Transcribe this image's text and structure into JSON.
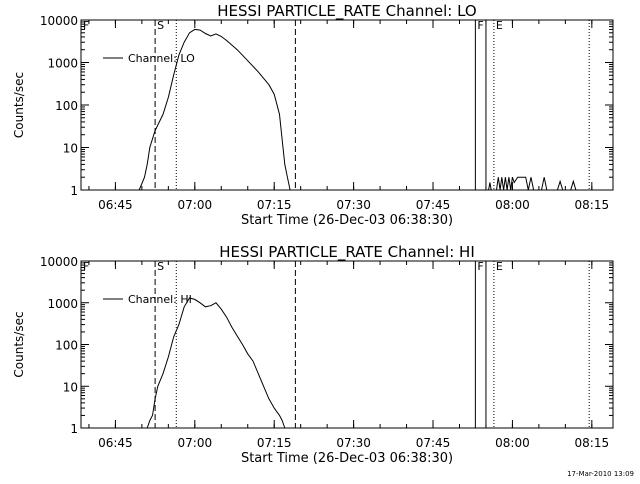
{
  "footer_stamp": "17-Mar-2010 13:09",
  "chart_data": [
    {
      "type": "line",
      "title": "HESSI PARTICLE_RATE Channel: LO",
      "xlabel": "Start Time (26-Dec-03 06:38:30)",
      "ylabel": "Counts/sec",
      "y_scale": "log",
      "ylim": [
        1,
        10000
      ],
      "xlim": [
        "06:38:30",
        "08:19:00"
      ],
      "x_ticks": [
        "06:45",
        "07:00",
        "07:15",
        "07:30",
        "07:45",
        "08:00",
        "08:15"
      ],
      "y_ticks": [
        "1",
        "10",
        "100",
        "1000",
        "10000"
      ],
      "legend": {
        "label": "Channel: LO",
        "position": "top-left"
      },
      "markers": [
        {
          "label": "F",
          "time": "06:38:30",
          "style": "dotted"
        },
        {
          "label": "S",
          "time": "06:52:30",
          "style": "dashed"
        },
        {
          "label": "",
          "time": "06:56:30",
          "style": "dotted"
        },
        {
          "label": "",
          "time": "07:19:00",
          "style": "dashed"
        },
        {
          "label": "F",
          "time": "07:53:00",
          "style": "solid"
        },
        {
          "label": "",
          "time": "07:55:00",
          "style": "solid"
        },
        {
          "label": "E",
          "time": "07:56:30",
          "style": "dotted"
        },
        {
          "label": "",
          "time": "08:14:30",
          "style": "dotted"
        }
      ],
      "series": [
        {
          "name": "Channel: LO",
          "segments": [
            [
              [
                "06:49:30",
                1
              ],
              [
                "06:50:30",
                2
              ],
              [
                "06:51:00",
                4
              ],
              [
                "06:51:30",
                10
              ],
              [
                "06:52:30",
                25
              ],
              [
                "06:54:00",
                60
              ],
              [
                "06:55:00",
                150
              ],
              [
                "06:56:00",
                500
              ],
              [
                "06:57:00",
                1500
              ],
              [
                "06:58:00",
                3000
              ],
              [
                "06:59:00",
                5000
              ],
              [
                "07:00:00",
                6000
              ],
              [
                "07:01:00",
                5800
              ],
              [
                "07:02:00",
                4800
              ],
              [
                "07:03:00",
                4200
              ],
              [
                "07:04:00",
                4700
              ],
              [
                "07:05:00",
                4100
              ],
              [
                "07:06:00",
                3300
              ],
              [
                "07:08:00",
                2000
              ],
              [
                "07:10:00",
                1100
              ],
              [
                "07:12:00",
                600
              ],
              [
                "07:14:00",
                300
              ],
              [
                "07:15:00",
                180
              ],
              [
                "07:16:00",
                60
              ],
              [
                "07:16:30",
                15
              ],
              [
                "07:17:00",
                4
              ],
              [
                "07:17:30",
                2
              ],
              [
                "07:18:00",
                1
              ]
            ],
            [
              [
                "07:55:30",
                1
              ],
              [
                "07:55:45",
                1.5
              ],
              [
                "07:56:00",
                1
              ]
            ],
            [
              [
                "07:57:00",
                1
              ],
              [
                "07:57:20",
                2
              ],
              [
                "07:57:40",
                1
              ],
              [
                "07:58:00",
                2
              ],
              [
                "07:58:20",
                1
              ],
              [
                "07:58:40",
                2
              ],
              [
                "07:59:00",
                1
              ],
              [
                "07:59:20",
                2
              ],
              [
                "07:59:40",
                1
              ],
              [
                "08:00:00",
                2
              ],
              [
                "08:00:20",
                1.5
              ],
              [
                "08:01:00",
                2
              ],
              [
                "08:02:30",
                2
              ],
              [
                "08:03:00",
                1
              ],
              [
                "08:03:30",
                2
              ],
              [
                "08:04:00",
                1
              ],
              [
                "08:05:30",
                1
              ],
              [
                "08:06:00",
                2
              ],
              [
                "08:06:30",
                1
              ],
              [
                "08:08:30",
                1
              ],
              [
                "08:09:00",
                1.6
              ],
              [
                "08:09:30",
                1
              ],
              [
                "08:11:00",
                1
              ],
              [
                "08:11:30",
                1.6
              ],
              [
                "08:12:00",
                1
              ]
            ]
          ]
        }
      ]
    },
    {
      "type": "line",
      "title": "HESSI PARTICLE_RATE Channel: HI",
      "xlabel": "Start Time (26-Dec-03 06:38:30)",
      "ylabel": "Counts/sec",
      "y_scale": "log",
      "ylim": [
        1,
        10000
      ],
      "xlim": [
        "06:38:30",
        "08:19:00"
      ],
      "x_ticks": [
        "06:45",
        "07:00",
        "07:15",
        "07:30",
        "07:45",
        "08:00",
        "08:15"
      ],
      "y_ticks": [
        "1",
        "10",
        "100",
        "1000",
        "10000"
      ],
      "legend": {
        "label": "Channel: HI",
        "position": "top-left"
      },
      "markers": [
        {
          "label": "F",
          "time": "06:38:30",
          "style": "dotted"
        },
        {
          "label": "S",
          "time": "06:52:30",
          "style": "dashed"
        },
        {
          "label": "",
          "time": "06:56:30",
          "style": "dotted"
        },
        {
          "label": "",
          "time": "07:19:00",
          "style": "dashed"
        },
        {
          "label": "F",
          "time": "07:53:00",
          "style": "solid"
        },
        {
          "label": "",
          "time": "07:55:00",
          "style": "solid"
        },
        {
          "label": "E",
          "time": "07:56:30",
          "style": "dotted"
        },
        {
          "label": "",
          "time": "08:14:30",
          "style": "dotted"
        }
      ],
      "series": [
        {
          "name": "Channel: HI",
          "segments": [
            [
              [
                "06:51:00",
                1
              ],
              [
                "06:51:30",
                1.5
              ],
              [
                "06:52:00",
                2
              ],
              [
                "06:52:30",
                5
              ],
              [
                "06:53:00",
                10
              ],
              [
                "06:54:00",
                20
              ],
              [
                "06:55:00",
                50
              ],
              [
                "06:56:00",
                150
              ],
              [
                "06:57:00",
                300
              ],
              [
                "06:58:00",
                800
              ],
              [
                "06:59:00",
                1300
              ],
              [
                "07:00:00",
                1200
              ],
              [
                "07:01:00",
                1000
              ],
              [
                "07:02:00",
                800
              ],
              [
                "07:03:00",
                850
              ],
              [
                "07:04:00",
                1000
              ],
              [
                "07:05:00",
                700
              ],
              [
                "07:06:00",
                450
              ],
              [
                "07:07:00",
                260
              ],
              [
                "07:08:00",
                160
              ],
              [
                "07:09:00",
                100
              ],
              [
                "07:10:00",
                60
              ],
              [
                "07:11:00",
                40
              ],
              [
                "07:12:00",
                20
              ],
              [
                "07:13:00",
                10
              ],
              [
                "07:14:00",
                5
              ],
              [
                "07:15:00",
                3
              ],
              [
                "07:16:00",
                2
              ],
              [
                "07:16:30",
                1.5
              ],
              [
                "07:17:00",
                1
              ]
            ]
          ]
        }
      ]
    }
  ]
}
